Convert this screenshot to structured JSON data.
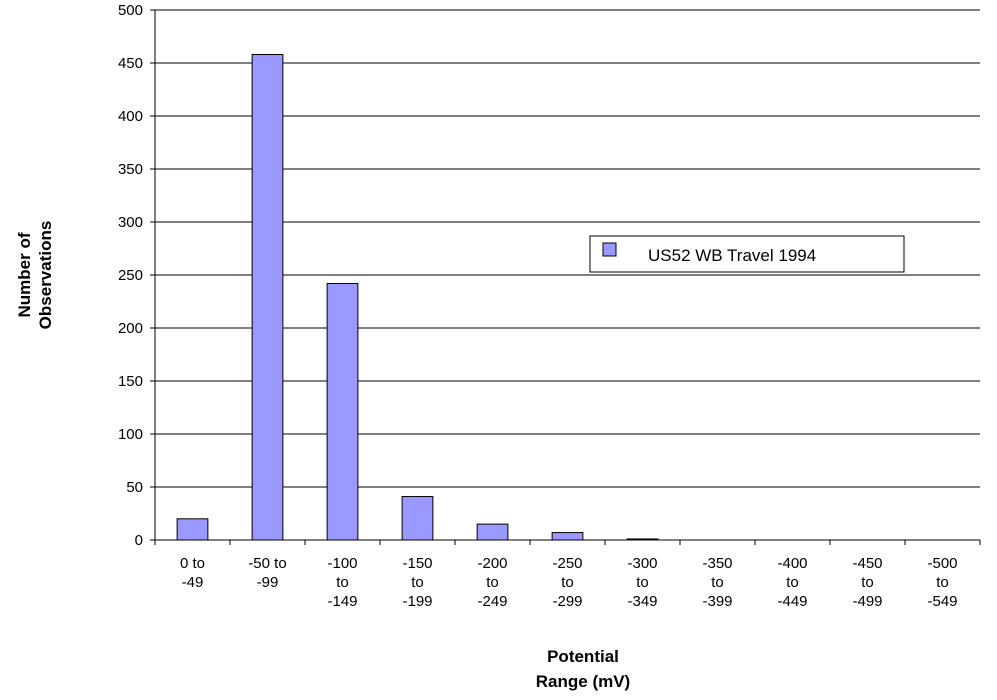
{
  "chart_data": {
    "type": "bar",
    "categories": [
      [
        "0 to",
        "-49"
      ],
      [
        "-50 to",
        "-99"
      ],
      [
        "-100",
        "to",
        "-149"
      ],
      [
        "-150",
        "to",
        "-199"
      ],
      [
        "-200",
        "to",
        "-249"
      ],
      [
        "-250",
        "to",
        "-299"
      ],
      [
        "-300",
        "to",
        "-349"
      ],
      [
        "-350",
        "to",
        "-399"
      ],
      [
        "-400",
        "to",
        "-449"
      ],
      [
        "-450",
        "to",
        "-499"
      ],
      [
        "-500",
        "to",
        "-549"
      ]
    ],
    "series": [
      {
        "name": "US52 WB Travel 1994",
        "values": [
          20,
          458,
          242,
          41,
          15,
          7,
          1,
          0,
          0,
          0,
          0
        ]
      }
    ],
    "xlabel": [
      "Potential",
      "Range (mV)"
    ],
    "ylabel": [
      "Number of",
      "Observations"
    ],
    "ylim": [
      0,
      500
    ],
    "yticks": [
      0,
      50,
      100,
      150,
      200,
      250,
      300,
      350,
      400,
      450,
      500
    ],
    "grid": true,
    "legend": "center-right",
    "colors": {
      "bar_fill": "#9999ff",
      "bar_stroke": "#000000",
      "grid": "#000000"
    }
  }
}
